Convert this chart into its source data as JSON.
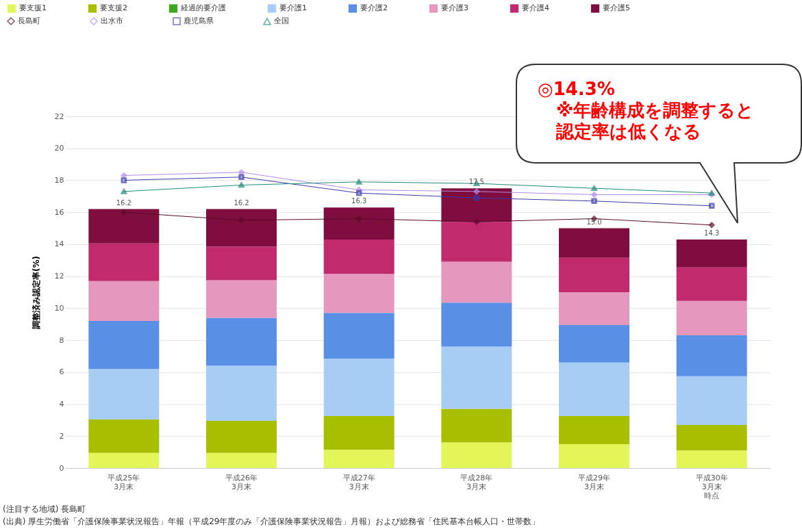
{
  "chart_data": {
    "type": "bar",
    "stacked": true,
    "ylabel": "調整済み認定率(%)",
    "categories": [
      "平成25年3月末",
      "平成26年3月末",
      "平成27年3月末",
      "平成28年3月末",
      "平成29年3月末",
      "平成30年3月末時点"
    ],
    "ylim": [
      0,
      22
    ],
    "yticks": [
      0,
      2,
      4,
      6,
      8,
      10,
      12,
      14,
      16,
      18,
      20,
      22
    ],
    "grid": "y",
    "legend": "top",
    "totals": [
      "16.2",
      "16.2",
      "16.3",
      "17.5",
      "15.0",
      "14.3"
    ],
    "series": [
      {
        "name": "要支援1",
        "color": "#e4f55a",
        "values": [
          0.95,
          0.95,
          1.15,
          1.6,
          1.5,
          1.1
        ]
      },
      {
        "name": "要支援2",
        "color": "#a8bf00",
        "values": [
          2.1,
          2.0,
          2.1,
          2.1,
          1.75,
          1.6
        ]
      },
      {
        "name": "経過的要介護",
        "color": "#3aaa1c",
        "values": [
          null,
          null,
          null,
          null,
          null,
          null
        ]
      },
      {
        "name": "要介護1",
        "color": "#a8cdf5",
        "values": [
          3.15,
          3.45,
          3.6,
          3.9,
          3.35,
          3.05
        ]
      },
      {
        "name": "要介護2",
        "color": "#5a8fe6",
        "values": [
          3.0,
          3.0,
          2.85,
          2.75,
          2.35,
          2.55
        ]
      },
      {
        "name": "要介護3",
        "color": "#e597bd",
        "values": [
          2.5,
          2.35,
          2.45,
          2.55,
          2.05,
          2.15
        ]
      },
      {
        "name": "要介護4",
        "color": "#c22a6e",
        "values": [
          2.35,
          2.1,
          2.15,
          2.5,
          2.15,
          2.1
        ]
      },
      {
        "name": "要介護5",
        "color": "#7f0e3e",
        "values": [
          2.15,
          2.35,
          2.0,
          2.1,
          1.85,
          1.75
        ]
      },
      {
        "name": "長島町",
        "type": "line",
        "marker": "diamond",
        "color": "#5c0a2a",
        "values": [
          16.0,
          15.5,
          15.6,
          15.4,
          15.6,
          15.2
        ]
      },
      {
        "name": "出水市",
        "type": "line",
        "marker": "diamond",
        "color": "#b48be8",
        "values": [
          18.3,
          18.5,
          17.4,
          17.3,
          17.1,
          17.1
        ]
      },
      {
        "name": "鹿児島県",
        "type": "line",
        "marker": "square",
        "color": "#3a3aaa",
        "values": [
          18.0,
          18.2,
          17.2,
          16.9,
          16.7,
          16.4
        ]
      },
      {
        "name": "全国",
        "type": "line",
        "marker": "triangle",
        "color": "#1e8a7a",
        "values": [
          17.3,
          17.7,
          17.9,
          17.8,
          17.5,
          17.2
        ]
      }
    ],
    "annotations": [
      "◎14.3%\n※年齢構成を調整すると認定率は低くなる",
      "(注目する地域) 長島町",
      "(出典) 厚生労働省「介護保険事業状況報告」年報（平成29年度のみ「介護保険事業状況報告」月報）および総務省「住民基本台帳人口・世帯数」"
    ]
  }
}
